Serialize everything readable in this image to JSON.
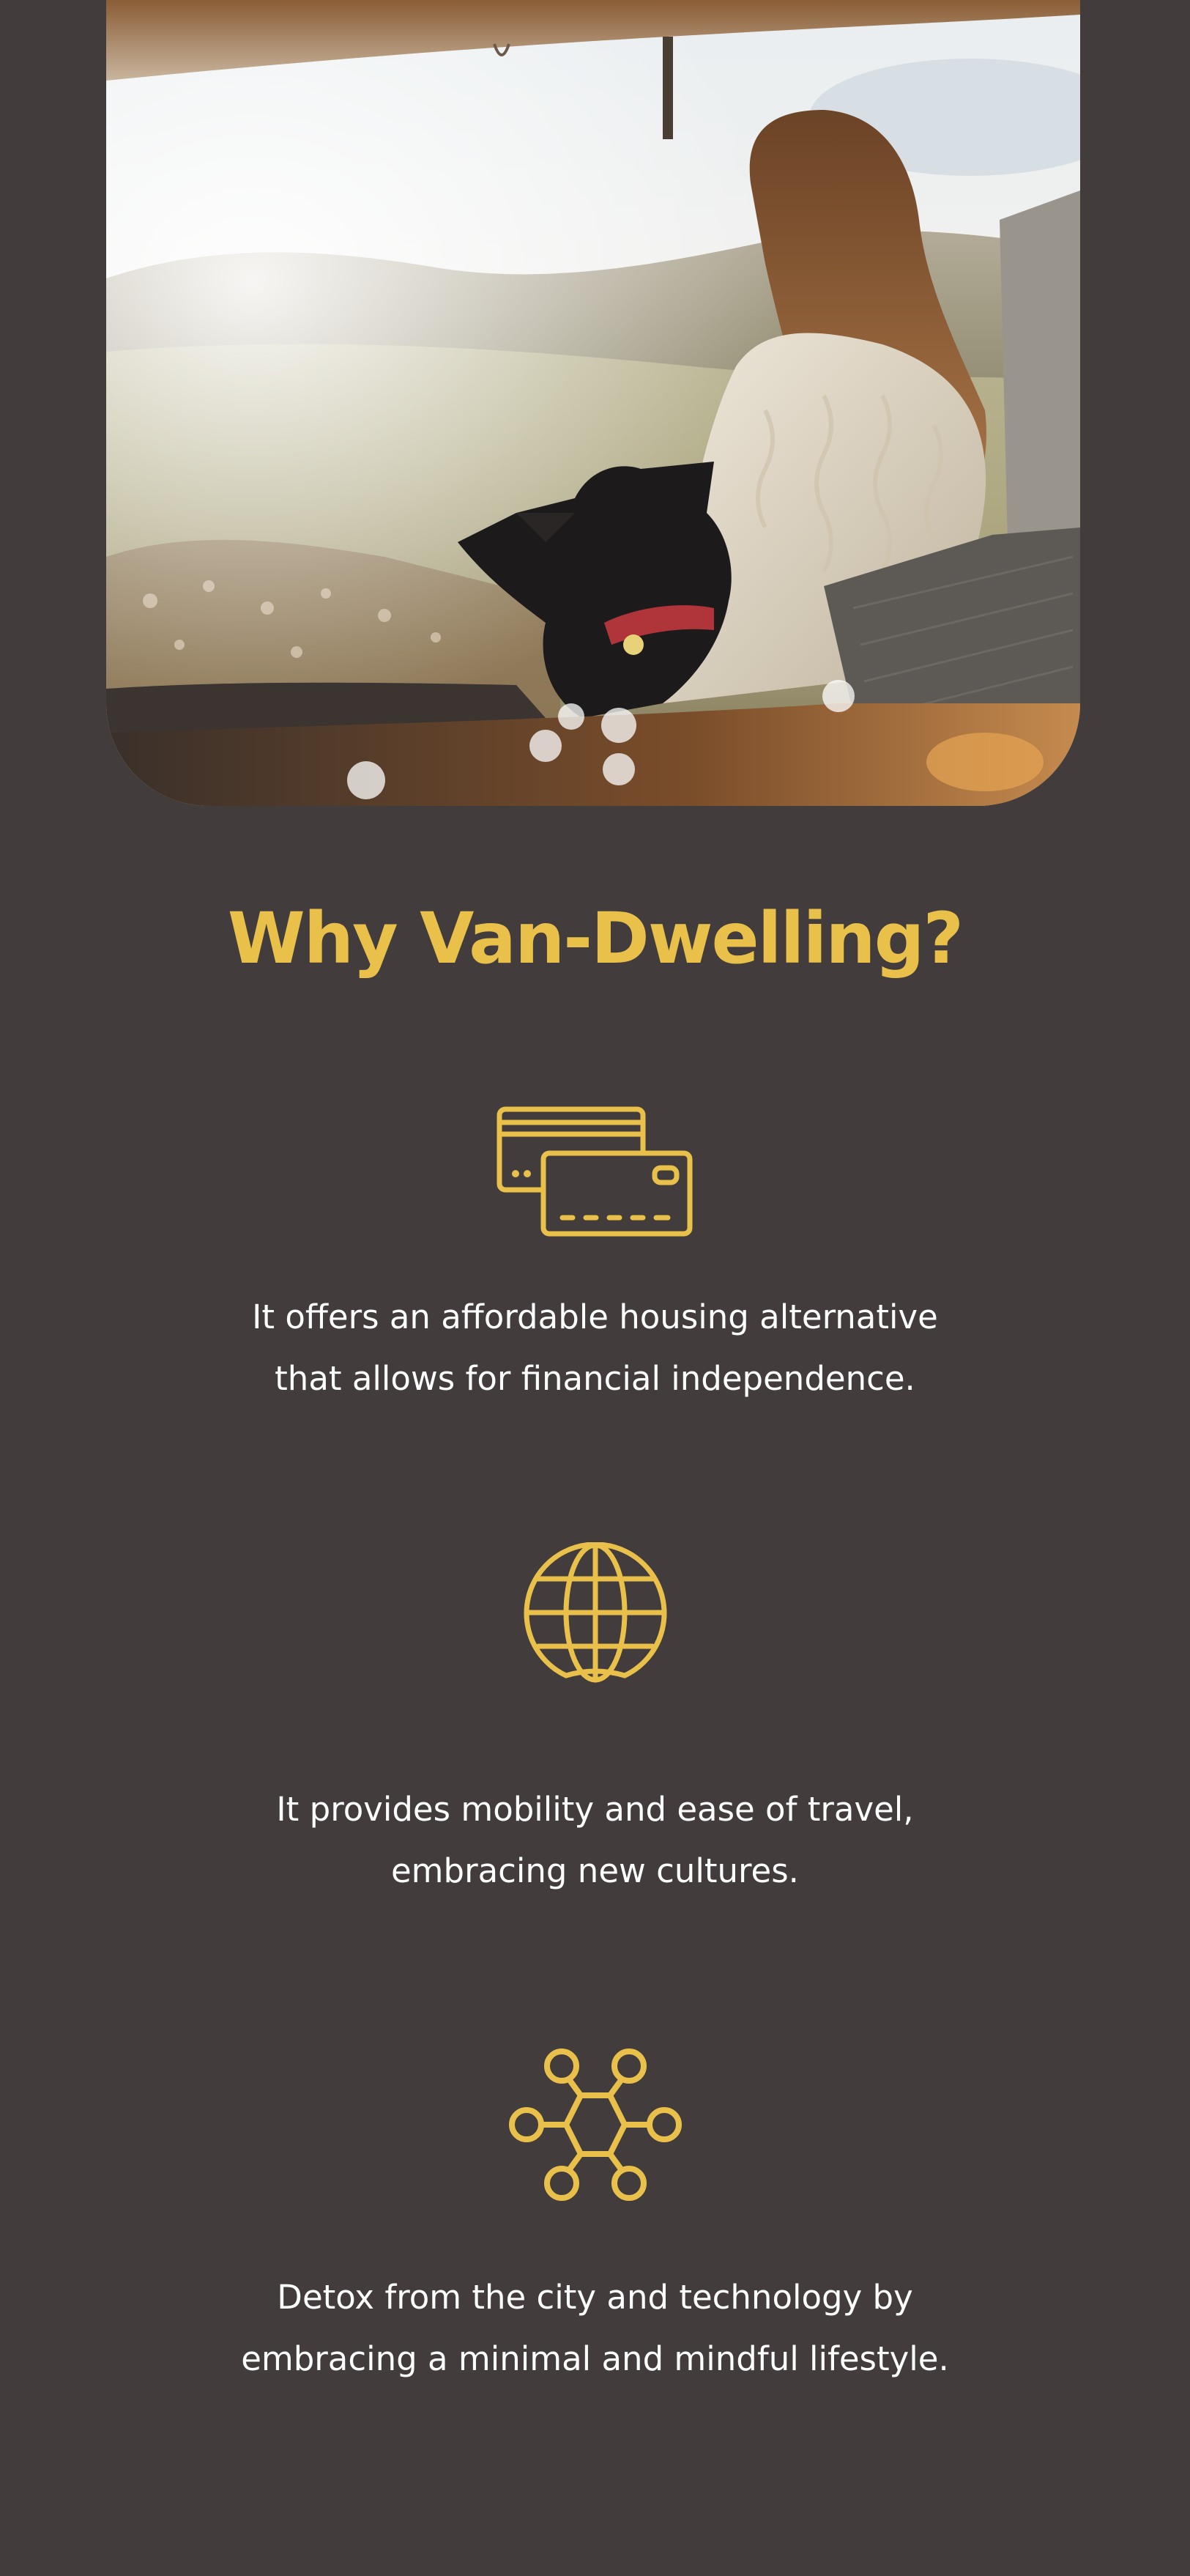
{
  "hero": {
    "image": "woman-and-dog-in-van-photo"
  },
  "section": {
    "title": "Why Van-Dwelling?"
  },
  "features": [
    {
      "icon": "credit-cards-icon",
      "line1": "It offers an affordable housing alternative",
      "line2": "that allows for financial independence."
    },
    {
      "icon": "globe-icon",
      "line1": "It provides mobility and ease of travel,",
      "line2": "embracing new cultures."
    },
    {
      "icon": "network-hexagon-icon",
      "line1": "Detox from the city and technology by",
      "line2": "embracing a minimal and mindful lifestyle."
    }
  ],
  "colors": {
    "background": "#423c3c",
    "accent": "#e9c14a",
    "text": "#ffffff"
  }
}
